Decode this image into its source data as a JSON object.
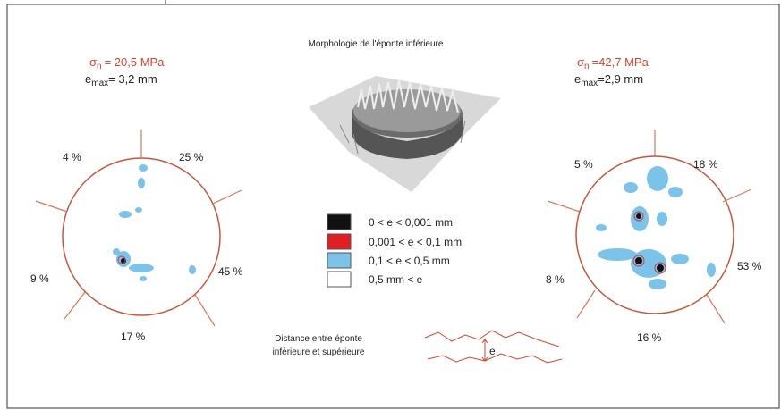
{
  "title": "Morphologie de l'éponte inférieure",
  "left": {
    "sigma": "σ",
    "sigma_sub": "n",
    "sigma_value": "= 20,5 MPa",
    "e": "e",
    "e_sub": "max",
    "e_value": "= 3,2 mm",
    "percents": [
      "4 %",
      "25 %",
      "45 %",
      "17 %",
      "9 %"
    ]
  },
  "right": {
    "sigma": "σ",
    "sigma_sub": "n",
    "sigma_value": "=42,7 MPa",
    "e": "e",
    "e_sub": "max",
    "e_value": "=2,9 mm",
    "percents": [
      "5 %",
      "18 %",
      "53 %",
      "16 %",
      "8 %"
    ]
  },
  "legend": [
    "0 < e <  0,001 mm",
    "0,001 < e < 0,1 mm",
    "0,1 < e < 0,5 mm",
    "0,5 mm < e"
  ],
  "caption": [
    "Distance entre éponte",
    "inférieure et supérieure"
  ],
  "gap_label": "e"
}
